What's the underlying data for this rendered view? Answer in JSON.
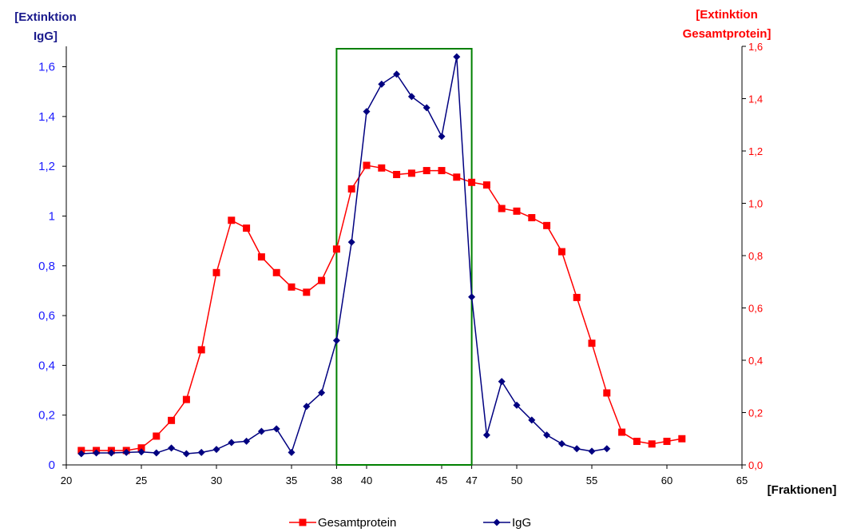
{
  "chart_data": {
    "type": "line",
    "ylabel_left": [
      "[Extinktion",
      "IgG]"
    ],
    "ylabel_right": [
      "[Extinktion",
      "Gesamtprotein]"
    ],
    "xlabel": "[Fraktionen]",
    "xlim": [
      20,
      65
    ],
    "ylim_left": [
      0,
      1.7333
    ],
    "ylim_right": [
      0,
      1.6
    ],
    "x_ticks": [
      "20",
      "25",
      "30",
      "35",
      "38",
      "40",
      "45",
      "47",
      "50",
      "55",
      "60",
      "65"
    ],
    "y_ticks_left": [
      "0",
      "0,2",
      "0,4",
      "0,6",
      "0,8",
      "1",
      "1,2",
      "1,4",
      "1,6"
    ],
    "y_ticks_right": [
      "0,0",
      "0,2",
      "0,4",
      "0,6",
      "0,8",
      "1,0",
      "1,2",
      "1,4",
      "1,6"
    ],
    "highlight": {
      "x_start": 38,
      "x_end": 47,
      "color": "#008000"
    },
    "legend_position": "bottom-center",
    "series": [
      {
        "name": "Gesamtprotein",
        "axis": "right",
        "color": "#ff0000",
        "marker": "square",
        "x": [
          21,
          22,
          23,
          24,
          25,
          26,
          27,
          28,
          29,
          30,
          31,
          32,
          33,
          34,
          35,
          36,
          37,
          38,
          39,
          40,
          41,
          42,
          43,
          44,
          45,
          46,
          47,
          48,
          49,
          50,
          51,
          52,
          53,
          54,
          55,
          56,
          57,
          58,
          59,
          60,
          61
        ],
        "y": [
          0.055,
          0.055,
          0.055,
          0.055,
          0.065,
          0.11,
          0.17,
          0.25,
          0.44,
          0.735,
          0.935,
          0.905,
          0.795,
          0.735,
          0.68,
          0.66,
          0.705,
          0.825,
          1.055,
          1.145,
          1.135,
          1.11,
          1.115,
          1.125,
          1.125,
          1.1,
          1.08,
          1.07,
          0.98,
          0.97,
          0.945,
          0.915,
          0.815,
          0.64,
          0.465,
          0.275,
          0.125,
          0.09,
          0.08,
          0.09,
          0.1
        ]
      },
      {
        "name": "IgG",
        "axis": "left",
        "color": "#000080",
        "marker": "diamond",
        "x": [
          21,
          22,
          23,
          24,
          25,
          26,
          27,
          28,
          29,
          30,
          31,
          32,
          33,
          34,
          35,
          36,
          37,
          38,
          39,
          40,
          41,
          42,
          43,
          44,
          45,
          46,
          47,
          48,
          49,
          50,
          51,
          52,
          53,
          54,
          55,
          56
        ],
        "y": [
          0.045,
          0.048,
          0.048,
          0.05,
          0.052,
          0.048,
          0.068,
          0.045,
          0.05,
          0.062,
          0.09,
          0.095,
          0.135,
          0.145,
          0.05,
          0.235,
          0.29,
          0.5,
          0.895,
          1.42,
          1.53,
          1.57,
          1.48,
          1.435,
          1.32,
          1.64,
          0.675,
          0.12,
          0.335,
          0.24,
          0.18,
          0.12,
          0.085,
          0.065,
          0.055,
          0.065
        ]
      }
    ]
  }
}
